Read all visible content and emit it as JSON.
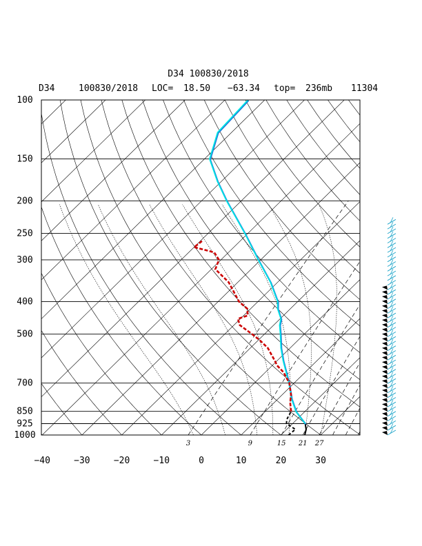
{
  "chart_data": {
    "type": "skew-t",
    "title": "D34 100830/2018",
    "subtitle": {
      "station": "D34",
      "datetime": "100830/2018",
      "loc_label": "LOC=",
      "lat": "18.50",
      "lon": "−63.34",
      "top_label": "top=",
      "top_value": "236mb",
      "id": "11304"
    },
    "pressure_levels": [
      100,
      150,
      200,
      250,
      300,
      400,
      500,
      700,
      850,
      925,
      1000
    ],
    "x_ticks": [
      -40,
      -30,
      -20,
      -10,
      0,
      10,
      20,
      30
    ],
    "xlim": [
      -40,
      40
    ],
    "ylim_mb": [
      1000,
      100
    ],
    "mixing_ratio_labels": [
      "3",
      "9",
      "15",
      "21",
      "27"
    ],
    "temperature_profile": [
      {
        "p": 1000,
        "t": 26.0
      },
      {
        "p": 962,
        "t": 24.9
      },
      {
        "p": 925,
        "t": 23.2
      },
      {
        "p": 850,
        "t": 17.7
      },
      {
        "p": 780,
        "t": 13.4
      },
      {
        "p": 700,
        "t": 8.7
      },
      {
        "p": 600,
        "t": 1.5
      },
      {
        "p": 550,
        "t": -2.3
      },
      {
        "p": 500,
        "t": -6.0
      },
      {
        "p": 470,
        "t": -8.5
      },
      {
        "p": 450,
        "t": -9.8
      },
      {
        "p": 420,
        "t": -13.2
      },
      {
        "p": 400,
        "t": -15.0
      },
      {
        "p": 350,
        "t": -21.8
      },
      {
        "p": 300,
        "t": -30.6
      },
      {
        "p": 250,
        "t": -40.8
      },
      {
        "p": 200,
        "t": -53.7
      },
      {
        "p": 175,
        "t": -61.0
      },
      {
        "p": 150,
        "t": -68.7
      },
      {
        "p": 125,
        "t": -73.5
      },
      {
        "p": 100,
        "t": -74.2
      }
    ],
    "dewpoint_profile": [
      {
        "p": 1000,
        "t": 21.9
      },
      {
        "p": 962,
        "t": 22.2
      },
      {
        "p": 925,
        "t": 18.5
      },
      {
        "p": 900,
        "t": 17.5
      },
      {
        "p": 850,
        "t": 16.5
      },
      {
        "p": 800,
        "t": 14.0
      },
      {
        "p": 760,
        "t": 12.3
      },
      {
        "p": 700,
        "t": 8.8
      },
      {
        "p": 650,
        "t": 4.6
      },
      {
        "p": 620,
        "t": 1.2
      },
      {
        "p": 600,
        "t": -0.6
      },
      {
        "p": 550,
        "t": -5.6
      },
      {
        "p": 520,
        "t": -9.8
      },
      {
        "p": 500,
        "t": -13.1
      },
      {
        "p": 470,
        "t": -18.5
      },
      {
        "p": 450,
        "t": -20.6
      },
      {
        "p": 440,
        "t": -19.0
      },
      {
        "p": 420,
        "t": -20.8
      },
      {
        "p": 400,
        "t": -24.7
      },
      {
        "p": 350,
        "t": -32.3
      },
      {
        "p": 320,
        "t": -39.0
      },
      {
        "p": 300,
        "t": -40.5
      },
      {
        "p": 285,
        "t": -43.6
      },
      {
        "p": 275,
        "t": -50.0
      },
      {
        "p": 268,
        "t": -49.7
      },
      {
        "p": 262,
        "t": -49.5
      }
    ],
    "wind_barbs": {
      "count": 46,
      "top_mb": 235,
      "bottom_mb": 1000,
      "colors": [
        "#000000",
        "#1aa3c8"
      ]
    },
    "colors": {
      "temperature": "#00e5e5",
      "temperature_shadow": "#1f6fd6",
      "dewpoint": "#cc0000",
      "lower_profile": "#000000",
      "wind_upper": "#1aa3c8",
      "wind_lower": "#000000"
    }
  }
}
